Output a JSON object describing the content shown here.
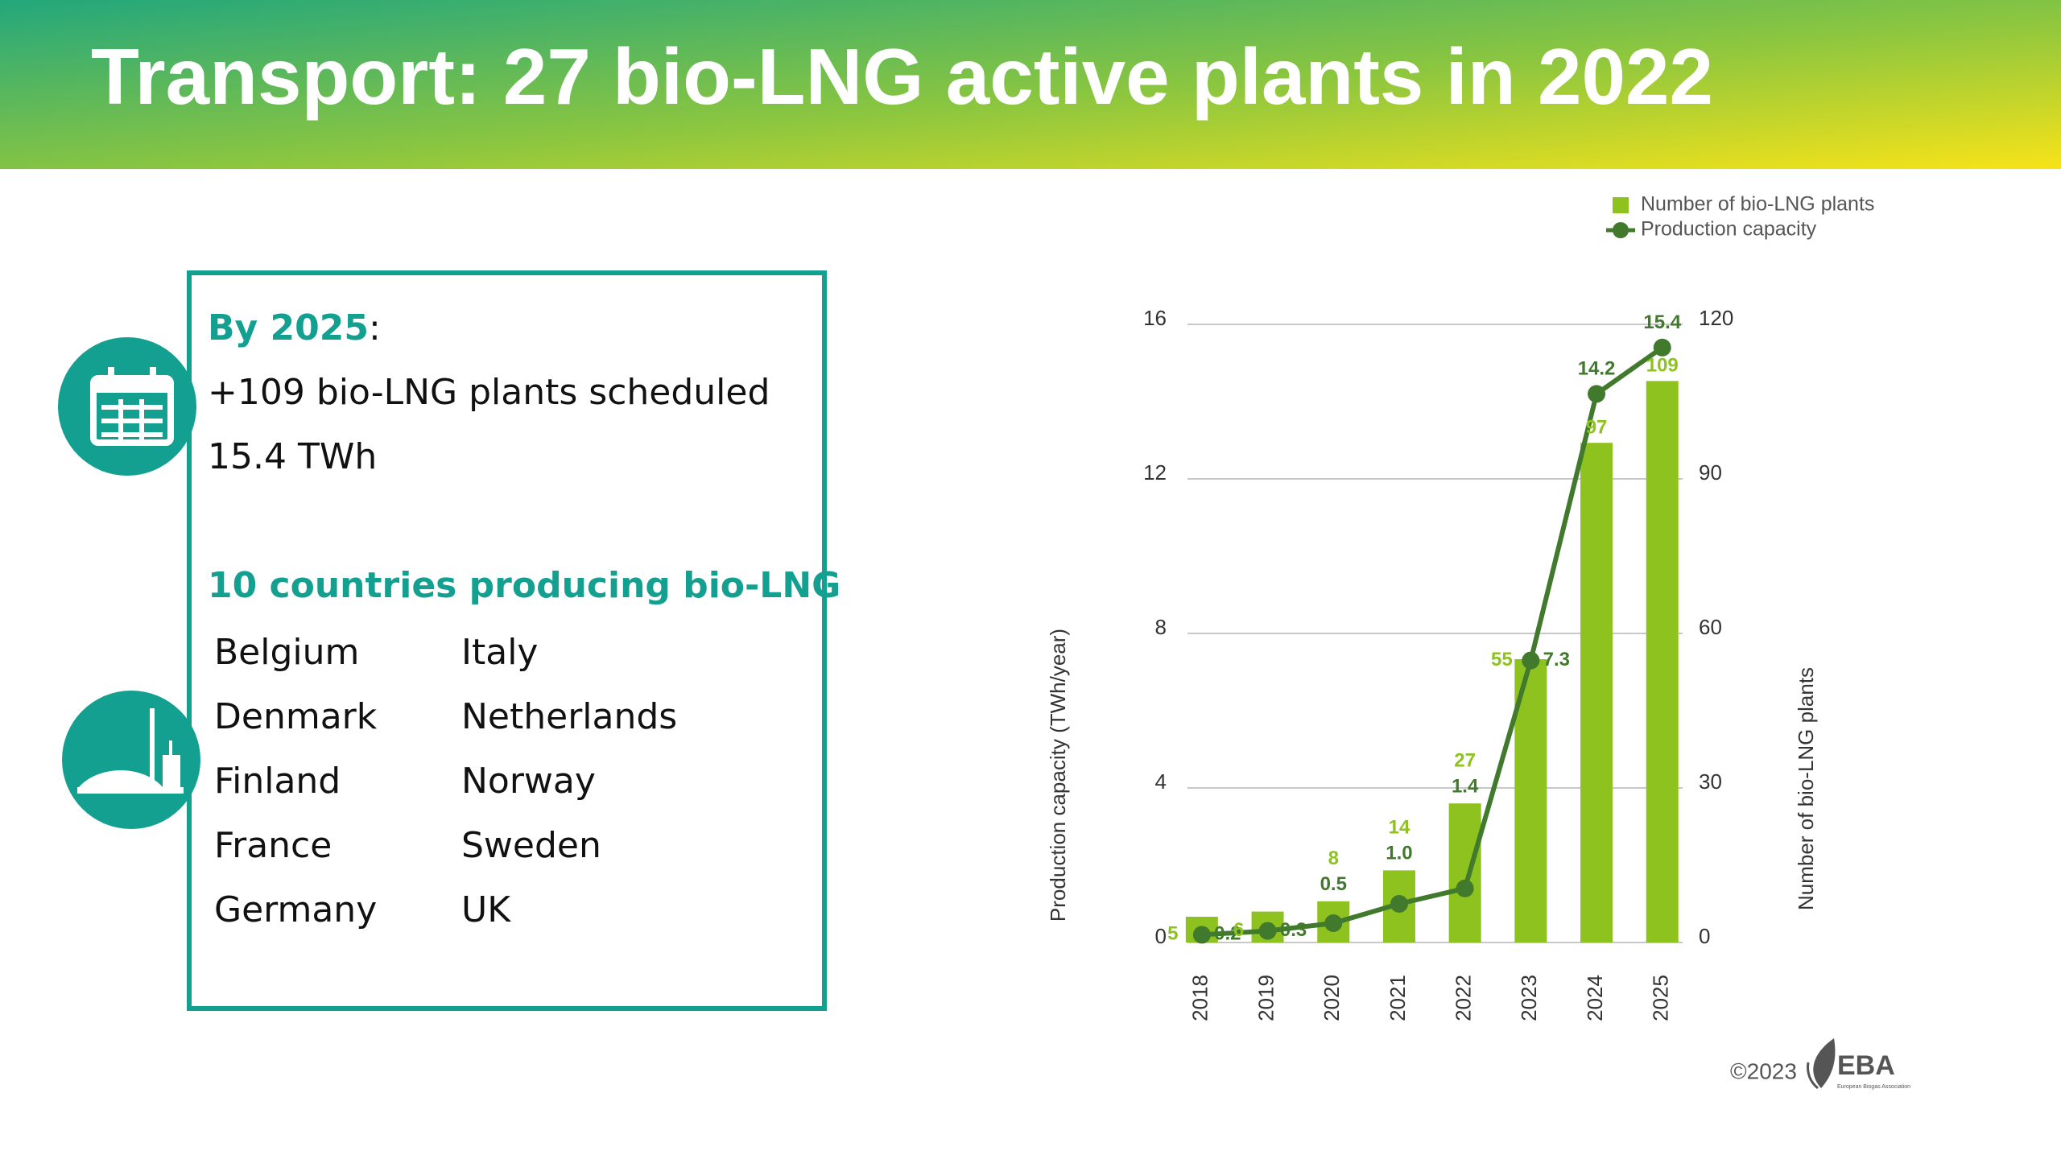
{
  "header": {
    "title": "Transport: 27 bio-LNG active plants in 2022"
  },
  "info": {
    "heading": "By 2025",
    "heading_suffix": ":",
    "lines": [
      "+109 bio-LNG plants scheduled",
      "15.4 TWh"
    ],
    "countries_heading": "10 countries producing bio-LNG",
    "countries": [
      "Belgium",
      "Denmark",
      "Finland",
      "France",
      "Germany",
      "Italy",
      "Netherlands",
      "Norway",
      "Sweden",
      "UK"
    ]
  },
  "chart_data": {
    "type": "bar",
    "categories": [
      "2018",
      "2019",
      "2020",
      "2021",
      "2022",
      "2023",
      "2024",
      "2025"
    ],
    "series": [
      {
        "name": "Number of bio-LNG plants",
        "type": "bar",
        "axis": "y2",
        "color": "#8dc21f",
        "values": [
          5,
          6,
          8,
          14,
          27,
          55,
          97,
          109
        ]
      },
      {
        "name": "Production capacity",
        "type": "line",
        "color": "#417a2c",
        "values": [
          0.2,
          0.3,
          0.5,
          1.0,
          1.4,
          7.3,
          14.2,
          15.4
        ],
        "value_labels": [
          "0.2",
          "0.3",
          "0.5",
          "1.0",
          "1.4",
          "7.3",
          "14.2",
          "15.4"
        ]
      }
    ],
    "ylabel": "Production capacity (TWh/year)",
    "y2label": "Number of bio-LNG plants",
    "ylim": [
      0,
      16
    ],
    "yticks": [
      0,
      4,
      8,
      12,
      16
    ],
    "y2lim": [
      0,
      120
    ],
    "y2ticks": [
      0,
      30,
      60,
      90,
      120
    ],
    "grid": true,
    "legend": "top-right"
  },
  "footer": {
    "copyright": "©2023",
    "logo": "EBA",
    "logo_subtitle": "European Biogas Association"
  }
}
